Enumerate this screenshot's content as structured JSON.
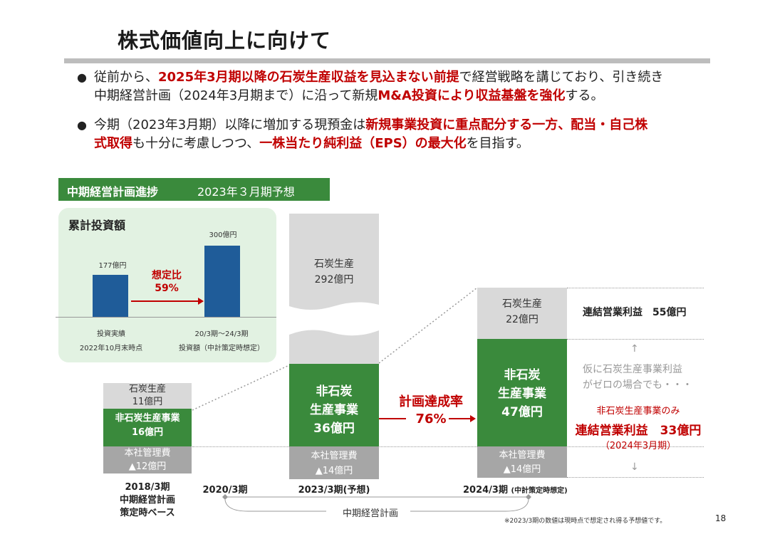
{
  "title": "株式価値向上に向けて",
  "bullets": [
    {
      "parts": [
        {
          "t": "従前から、",
          "em": false
        },
        {
          "t": "2025年3月期以降の石炭生産収益を見込まない前提",
          "em": true
        },
        {
          "t": "で経営戦略を講じており、引き続き",
          "em": false
        }
      ],
      "line2": [
        {
          "t": "中期経営計画（2024年3月期まで）に沿って新規",
          "em": false
        },
        {
          "t": "M&A投資により収益基盤を強化",
          "em": true
        },
        {
          "t": "する。",
          "em": false
        }
      ]
    },
    {
      "parts": [
        {
          "t": "今期（2023年3月期）以降に増加する現預金は",
          "em": false
        },
        {
          "t": "新規事業投資に重点配分する一方、配当・自己株",
          "em": true
        }
      ],
      "line2": [
        {
          "t": "式取得",
          "em": true
        },
        {
          "t": "も十分に考慮しつつ、",
          "em": false
        },
        {
          "t": "一株当たり純利益（EPS）の最大化",
          "em": true
        },
        {
          "t": "を目指す。",
          "em": false
        }
      ]
    }
  ],
  "header": {
    "label": "中期経営計画進捗",
    "forecast": "2023年３月期予想"
  },
  "investment": {
    "title": "累計投資額",
    "actual_value": "177億円",
    "plan_value": "300億円",
    "actual": 177,
    "plan": 300,
    "ratio_label": "想定比",
    "ratio": "59%",
    "actual_label1": "投資実績",
    "actual_label2": "2022年10月末時点",
    "plan_label1": "20/3期～24/3期",
    "plan_label2": "投資額（中計策定時想定）"
  },
  "col2018": {
    "coal": "石炭生産",
    "coal_val": "11億円",
    "noncoal": "非石炭生産事業",
    "noncoal_val": "16億円",
    "hq": "本社管理費",
    "hq_val": "▲12億円",
    "label1": "2018/3期",
    "label2": "中期経営計画",
    "label3": "策定時ベース"
  },
  "col2023": {
    "coal": "石炭生産",
    "coal_val": "292億円",
    "noncoal1": "非石炭",
    "noncoal2": "生産事業",
    "noncoal_val": "36億円",
    "hq": "本社管理費",
    "hq_val": "▲14億円",
    "label": "2023/3期(予想)"
  },
  "col2024": {
    "coal": "石炭生産",
    "coal_val": "22億円",
    "noncoal1": "非石炭",
    "noncoal2": "生産事業",
    "noncoal_val": "47億円",
    "hq": "本社管理費",
    "hq_val": "▲14億円",
    "label": "2024/3期",
    "label_note": "(中計策定時想定)"
  },
  "achievement": {
    "label": "計画達成率",
    "value": "76%"
  },
  "timeline": {
    "start": "2020/3期",
    "plan": "中期経営計画"
  },
  "right": {
    "op_profit": "連結営業利益　55億円",
    "note1": "仮に石炭生産事業利益",
    "note2": "がゼロの場合でも・・・",
    "note3": "非石炭生産事業のみ",
    "op_profit2": "連結営業利益　33億円",
    "period": "（2024年3月期）"
  },
  "footnote": "※2023/3期の数値は現時点で想定され得る予想値です。",
  "page": "18"
}
